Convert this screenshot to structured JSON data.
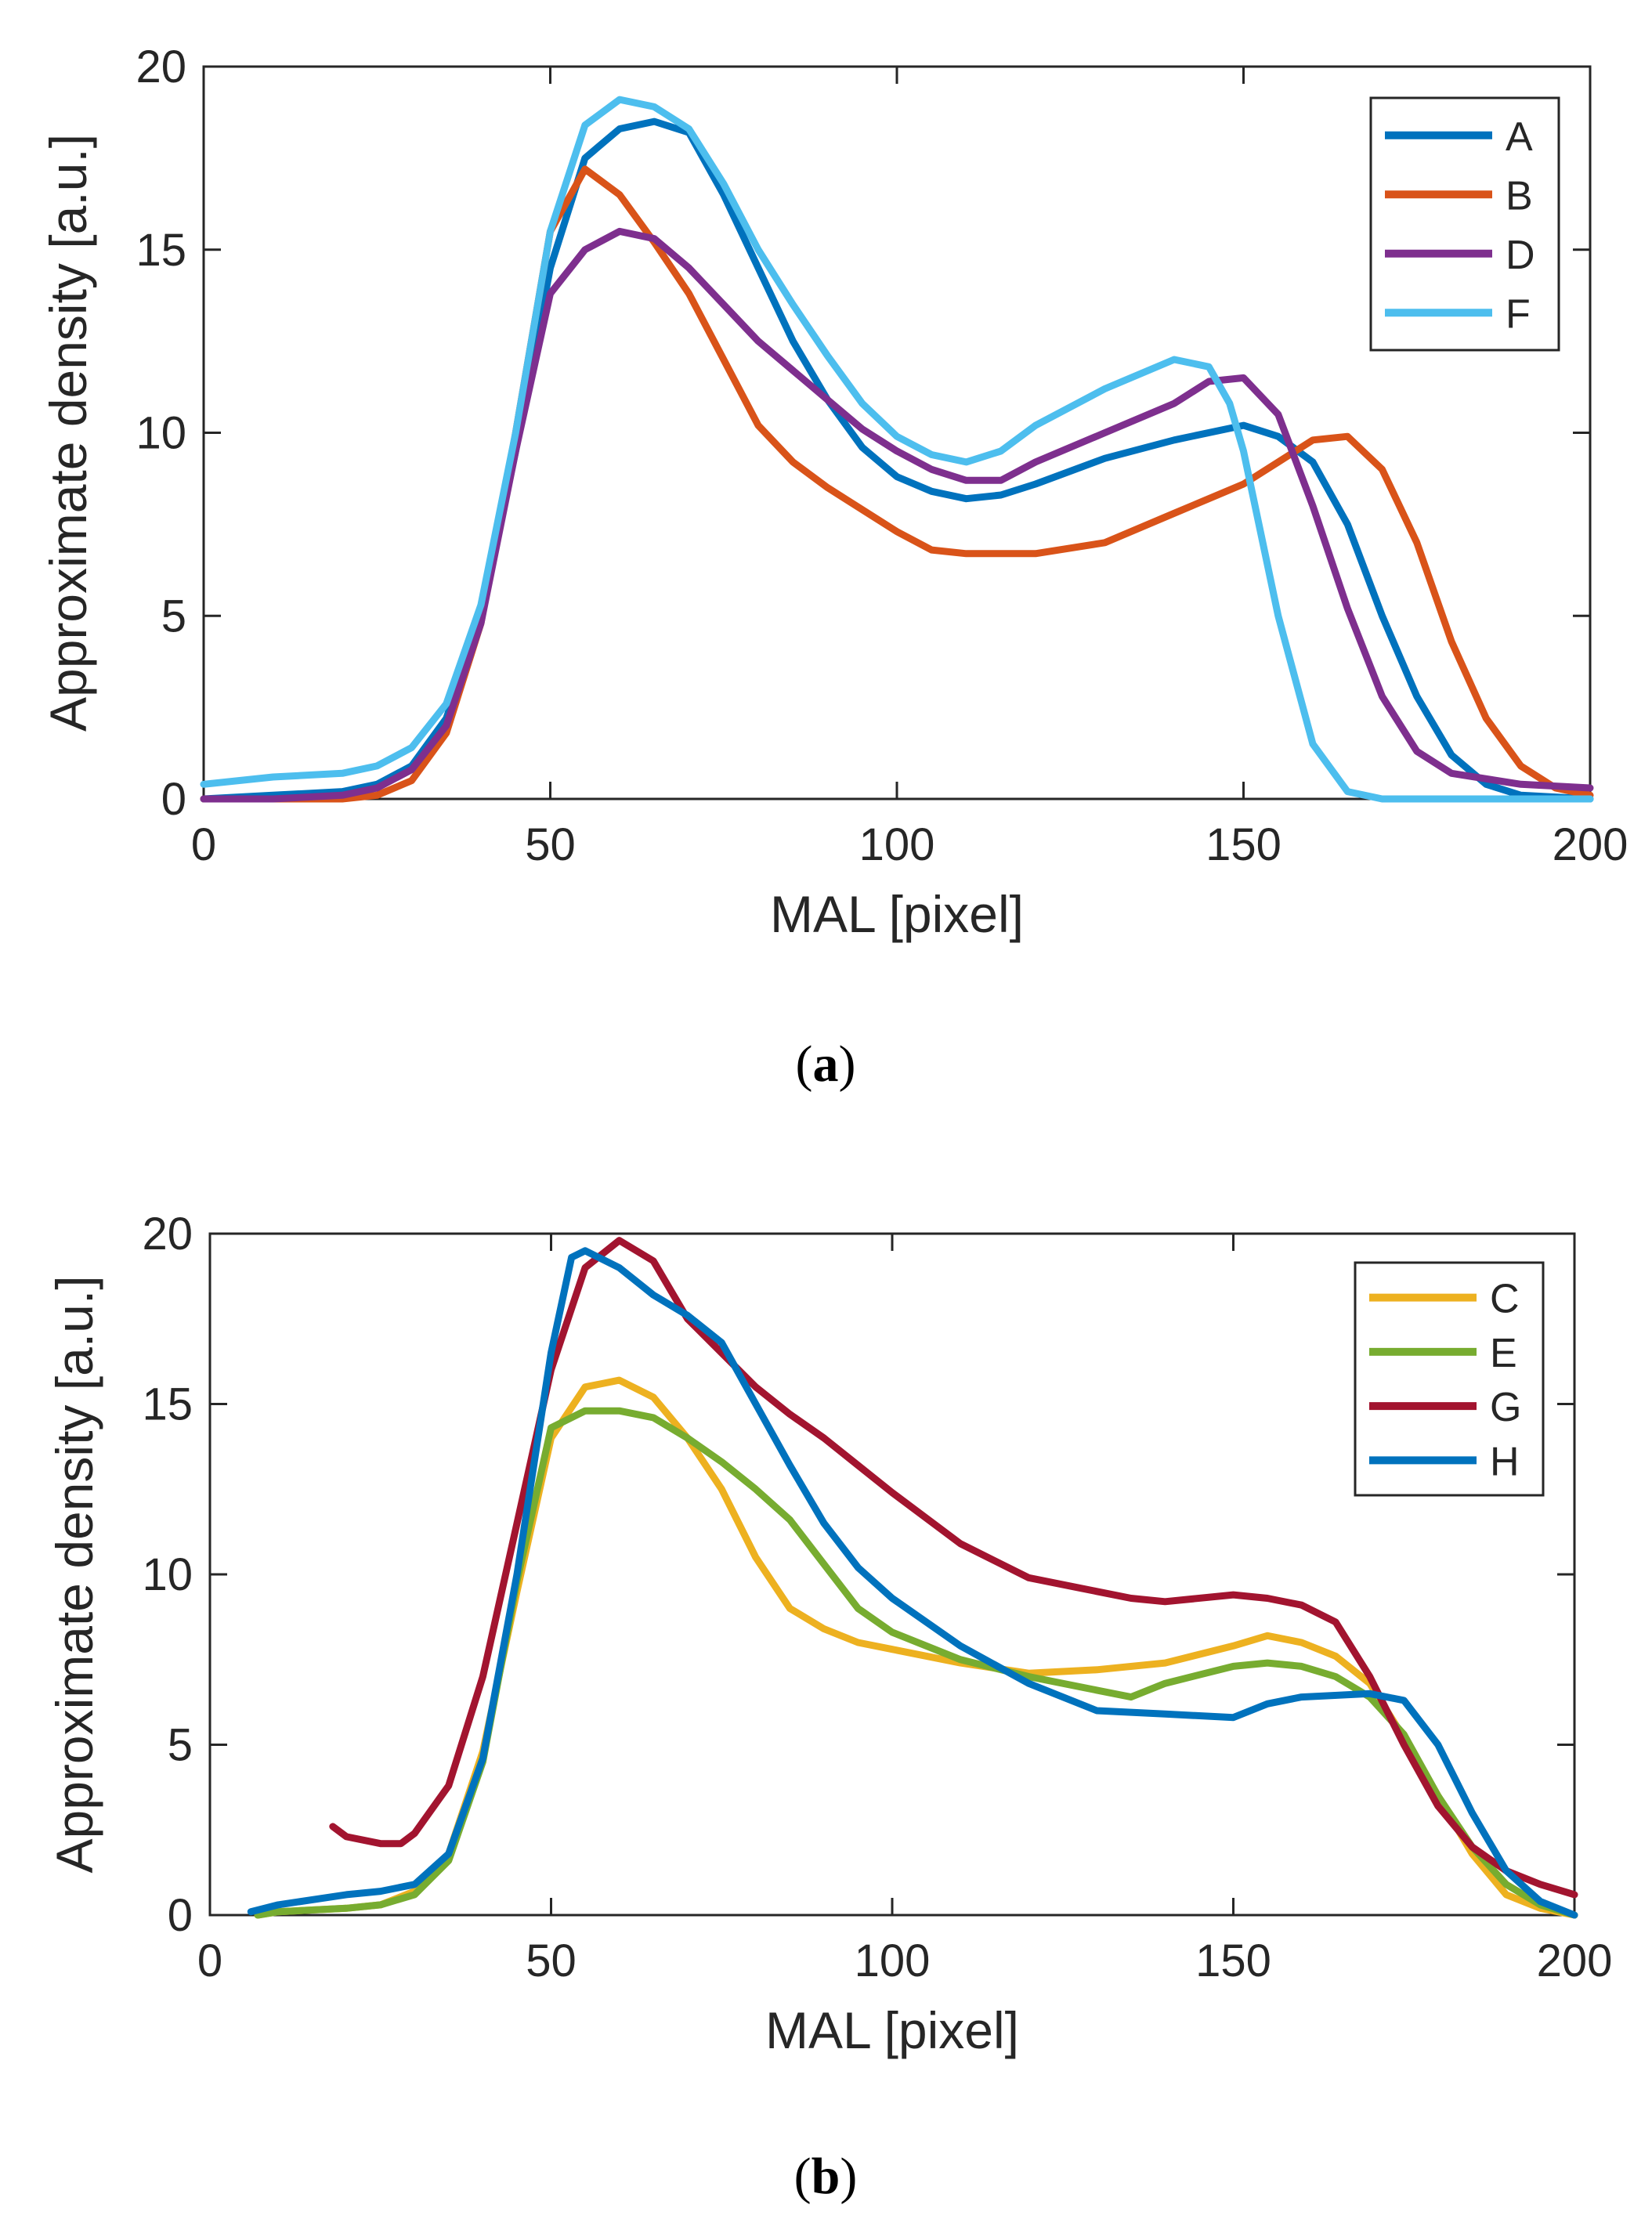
{
  "chart_data": [
    {
      "type": "line",
      "panel_label": "a",
      "xlabel": "MAL [pixel]",
      "ylabel": "Approximate density [a.u.]",
      "xlim": [
        0,
        200
      ],
      "ylim": [
        0,
        20
      ],
      "xticks": [
        0,
        50,
        100,
        150,
        200
      ],
      "yticks": [
        0,
        5,
        10,
        15,
        20
      ],
      "legend_position": "top-right",
      "series": [
        {
          "name": "A",
          "color": "#0072BD",
          "x": [
            0,
            10,
            20,
            25,
            30,
            35,
            40,
            45,
            50,
            55,
            60,
            65,
            70,
            75,
            80,
            85,
            90,
            95,
            100,
            105,
            110,
            115,
            120,
            130,
            140,
            150,
            155,
            160,
            165,
            170,
            175,
            180,
            185,
            190,
            200
          ],
          "y": [
            0.0,
            0.1,
            0.2,
            0.4,
            0.9,
            2.2,
            5.0,
            9.5,
            14.5,
            17.5,
            18.3,
            18.5,
            18.2,
            16.5,
            14.5,
            12.5,
            10.9,
            9.6,
            8.8,
            8.4,
            8.2,
            8.3,
            8.6,
            9.3,
            9.8,
            10.2,
            9.9,
            9.2,
            7.5,
            5.0,
            2.8,
            1.2,
            0.4,
            0.1,
            0.0
          ]
        },
        {
          "name": "B",
          "color": "#D95319",
          "x": [
            0,
            10,
            20,
            25,
            30,
            35,
            40,
            45,
            50,
            55,
            60,
            65,
            70,
            75,
            80,
            85,
            90,
            95,
            100,
            105,
            110,
            115,
            120,
            130,
            140,
            150,
            155,
            160,
            165,
            170,
            175,
            180,
            185,
            190,
            195,
            200
          ],
          "y": [
            0.0,
            0.0,
            0.0,
            0.1,
            0.5,
            1.8,
            4.8,
            10.0,
            15.5,
            17.2,
            16.5,
            15.2,
            13.8,
            12.0,
            10.2,
            9.2,
            8.5,
            7.9,
            7.3,
            6.8,
            6.7,
            6.7,
            6.7,
            7.0,
            7.8,
            8.6,
            9.2,
            9.8,
            9.9,
            9.0,
            7.0,
            4.3,
            2.2,
            0.9,
            0.3,
            0.1
          ]
        },
        {
          "name": "D",
          "color": "#7E2F8E",
          "x": [
            0,
            10,
            20,
            25,
            30,
            35,
            40,
            45,
            50,
            55,
            60,
            65,
            70,
            75,
            80,
            85,
            90,
            95,
            100,
            105,
            110,
            115,
            120,
            130,
            140,
            145,
            150,
            155,
            160,
            165,
            170,
            175,
            180,
            190,
            200
          ],
          "y": [
            0.0,
            0.0,
            0.1,
            0.3,
            0.8,
            2.0,
            4.8,
            9.5,
            13.8,
            15.0,
            15.5,
            15.3,
            14.5,
            13.5,
            12.5,
            11.7,
            10.9,
            10.1,
            9.5,
            9.0,
            8.7,
            8.7,
            9.2,
            10.0,
            10.8,
            11.4,
            11.5,
            10.5,
            8.0,
            5.2,
            2.8,
            1.3,
            0.7,
            0.4,
            0.3
          ]
        },
        {
          "name": "F",
          "color": "#4DBEEE",
          "x": [
            0,
            10,
            20,
            25,
            30,
            35,
            40,
            45,
            50,
            55,
            60,
            65,
            70,
            75,
            80,
            85,
            90,
            95,
            100,
            105,
            110,
            115,
            120,
            130,
            140,
            145,
            148,
            150,
            155,
            160,
            165,
            170,
            180,
            200
          ],
          "y": [
            0.4,
            0.6,
            0.7,
            0.9,
            1.4,
            2.6,
            5.3,
            10.0,
            15.5,
            18.4,
            19.1,
            18.9,
            18.3,
            16.8,
            15.0,
            13.5,
            12.1,
            10.8,
            9.9,
            9.4,
            9.2,
            9.5,
            10.2,
            11.2,
            12.0,
            11.8,
            10.8,
            9.5,
            5.0,
            1.5,
            0.2,
            0.0,
            0.0,
            0.0
          ]
        }
      ]
    },
    {
      "type": "line",
      "panel_label": "b",
      "xlabel": "MAL [pixel]",
      "ylabel": "Approximate density [a.u.]",
      "xlim": [
        0,
        200
      ],
      "ylim": [
        0,
        20
      ],
      "xticks": [
        0,
        50,
        100,
        150,
        200
      ],
      "yticks": [
        0,
        5,
        10,
        15,
        20
      ],
      "legend_position": "top-right",
      "series": [
        {
          "name": "C",
          "color": "#EDB120",
          "x": [
            7,
            10,
            20,
            25,
            30,
            35,
            40,
            45,
            50,
            55,
            60,
            65,
            70,
            75,
            80,
            85,
            90,
            95,
            100,
            110,
            120,
            130,
            140,
            150,
            155,
            160,
            165,
            170,
            175,
            180,
            185,
            190,
            195,
            200
          ],
          "y": [
            0.0,
            0.1,
            0.2,
            0.3,
            0.7,
            1.8,
            4.8,
            9.5,
            14.0,
            15.5,
            15.7,
            15.2,
            14.0,
            12.5,
            10.5,
            9.0,
            8.4,
            8.0,
            7.8,
            7.4,
            7.1,
            7.2,
            7.4,
            7.9,
            8.2,
            8.0,
            7.6,
            6.8,
            5.2,
            3.5,
            1.8,
            0.6,
            0.2,
            0.0
          ]
        },
        {
          "name": "E",
          "color": "#77AC30",
          "x": [
            7,
            10,
            20,
            25,
            30,
            35,
            40,
            45,
            50,
            55,
            60,
            65,
            70,
            75,
            80,
            85,
            90,
            95,
            100,
            110,
            120,
            130,
            135,
            140,
            150,
            155,
            160,
            165,
            170,
            175,
            180,
            185,
            190,
            195,
            200
          ],
          "y": [
            0.0,
            0.1,
            0.2,
            0.3,
            0.6,
            1.6,
            4.5,
            9.8,
            14.3,
            14.8,
            14.8,
            14.6,
            14.0,
            13.3,
            12.5,
            11.6,
            10.3,
            9.0,
            8.3,
            7.5,
            7.0,
            6.6,
            6.4,
            6.8,
            7.3,
            7.4,
            7.3,
            7.0,
            6.4,
            5.3,
            3.5,
            2.0,
            0.9,
            0.3,
            0.0
          ]
        },
        {
          "name": "G",
          "color": "#A2142F",
          "x": [
            18,
            20,
            25,
            28,
            30,
            35,
            40,
            45,
            50,
            55,
            60,
            65,
            70,
            75,
            80,
            85,
            90,
            95,
            100,
            110,
            120,
            130,
            135,
            140,
            150,
            155,
            160,
            165,
            170,
            175,
            180,
            185,
            190,
            195,
            200
          ],
          "y": [
            2.6,
            2.3,
            2.1,
            2.1,
            2.4,
            3.8,
            7.0,
            11.5,
            16.0,
            19.0,
            19.8,
            19.2,
            17.5,
            16.5,
            15.5,
            14.7,
            14.0,
            13.2,
            12.4,
            10.9,
            9.9,
            9.5,
            9.3,
            9.2,
            9.4,
            9.3,
            9.1,
            8.6,
            7.0,
            5.0,
            3.2,
            2.0,
            1.3,
            0.9,
            0.6
          ]
        },
        {
          "name": "H",
          "color": "#0072BD",
          "x": [
            6,
            10,
            20,
            25,
            30,
            35,
            40,
            45,
            50,
            53,
            55,
            60,
            65,
            70,
            75,
            80,
            85,
            90,
            95,
            100,
            110,
            120,
            130,
            140,
            150,
            155,
            160,
            170,
            175,
            180,
            185,
            190,
            195,
            200
          ],
          "y": [
            0.1,
            0.3,
            0.6,
            0.7,
            0.9,
            1.8,
            4.6,
            10.0,
            16.5,
            19.3,
            19.5,
            19.0,
            18.2,
            17.6,
            16.8,
            15.0,
            13.2,
            11.5,
            10.2,
            9.3,
            7.9,
            6.8,
            6.0,
            5.9,
            5.8,
            6.2,
            6.4,
            6.5,
            6.3,
            5.0,
            3.0,
            1.3,
            0.4,
            0.0
          ]
        }
      ]
    }
  ]
}
